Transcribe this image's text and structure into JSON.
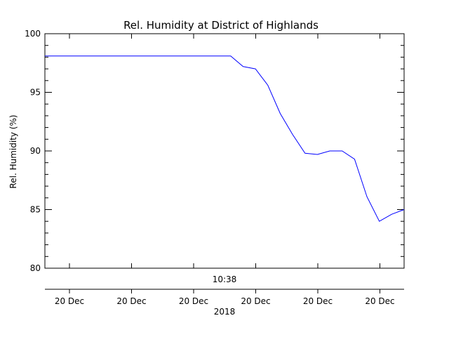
{
  "chart_data": {
    "type": "line",
    "title": "Rel. Humidity at District of Highlands",
    "ylabel": "Rel. Humidity (%)",
    "xlabel": "",
    "ylim": [
      80,
      100
    ],
    "yticks": [
      80,
      85,
      90,
      95,
      100
    ],
    "y_minor_step": 1,
    "grid": false,
    "legend": "none",
    "line_color": "#0000ff",
    "upper_axis_label": "10:38",
    "date_tick_labels": [
      "20 Dec",
      "20 Dec",
      "20 Dec",
      "20 Dec",
      "20 Dec",
      "20 Dec"
    ],
    "year_label": "2018",
    "series": [
      {
        "values": [
          98.1,
          98.1,
          98.1,
          98.1,
          98.1,
          98.1,
          98.1,
          98.1,
          98.1,
          98.1,
          98.1,
          98.1,
          98.1,
          98.1,
          98.1,
          98.1,
          97.2,
          97.0,
          95.6,
          93.2,
          91.4,
          89.8,
          89.7,
          90.0,
          90.0,
          89.3,
          86.1,
          84.0,
          84.6,
          85.0
        ]
      }
    ]
  }
}
